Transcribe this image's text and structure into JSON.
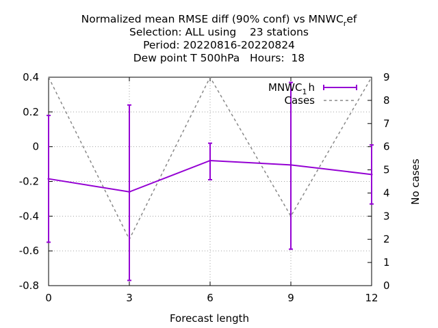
{
  "chart_data": {
    "type": "line",
    "title_lines": [
      "Normalized mean RMSE diff (90% conf) vs MNWC",
      "Selection: ALL using    23 stations",
      "Period: 20220816-20220824",
      "Dew point T 500hPa   Hours:  18"
    ],
    "title_suffix": {
      "sub": "r",
      "rest": "ef"
    },
    "xlabel": "Forecast length",
    "ylabel_right": "No cases",
    "xlim": [
      0,
      12
    ],
    "ylim": [
      -0.8,
      0.4
    ],
    "y2lim": [
      0,
      9
    ],
    "x_ticks": [
      0,
      3,
      6,
      9,
      12
    ],
    "y_ticks": [
      "-0.8",
      "-0.6",
      "-0.4",
      "-0.2",
      "0",
      "0.2",
      "0.4"
    ],
    "y2_ticks": [
      "0",
      "1",
      "2",
      "3",
      "4",
      "5",
      "6",
      "7",
      "8",
      "9"
    ],
    "grid": true,
    "legend_position": "top-right",
    "series": [
      {
        "name": "MNWC",
        "name_sub": "1",
        "name_rest": "h",
        "color": "#9400d3",
        "axis": "y",
        "x": [
          0,
          3,
          6,
          9,
          12
        ],
        "y": [
          -0.185,
          -0.26,
          -0.08,
          -0.105,
          -0.16
        ],
        "err_low": [
          -0.55,
          -0.77,
          -0.19,
          -0.59,
          -0.33
        ],
        "err_high": [
          0.18,
          0.24,
          0.02,
          0.37,
          0.01
        ]
      },
      {
        "name": "Cases",
        "color": "#888888",
        "axis": "y2",
        "dashed": true,
        "x": [
          0,
          3,
          6,
          9,
          12
        ],
        "y": [
          9,
          2,
          9,
          3,
          9
        ]
      }
    ]
  }
}
